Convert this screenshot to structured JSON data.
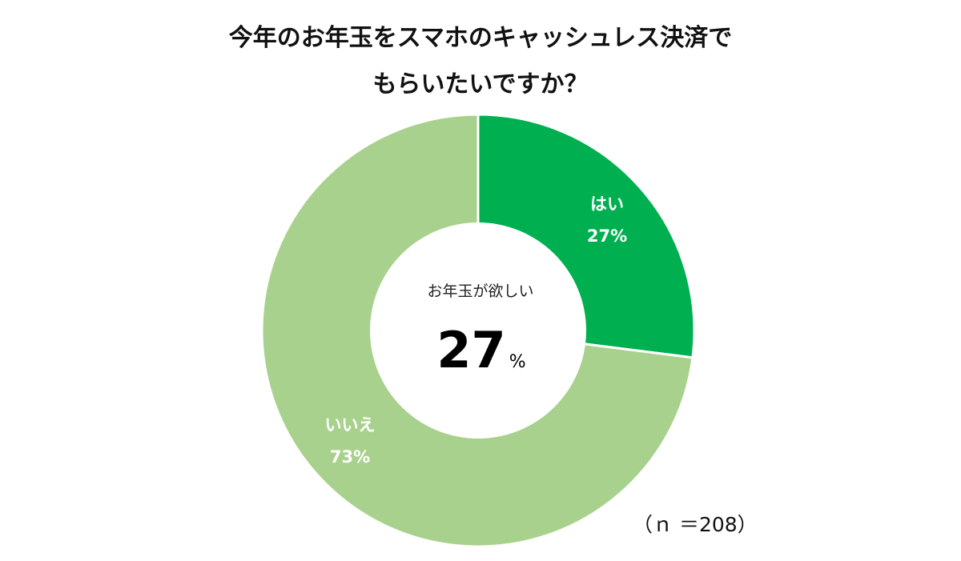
{
  "chart_data": {
    "type": "pie",
    "title": "今年のお年玉をスマホのキャッシュレス決済で",
    "subtitle": "もらいたいですか？",
    "slices": [
      {
        "label": "はい",
        "value": 27,
        "value_label": "27%",
        "color": "#00b050"
      },
      {
        "label": "いいえ",
        "value": 73,
        "value_label": "73%",
        "color": "#a9d18e"
      }
    ],
    "donut": true,
    "center_text": "お年玉が欲しい",
    "center_value": "27",
    "center_unit": "%",
    "sample_note": "（ｎ ＝208）"
  }
}
